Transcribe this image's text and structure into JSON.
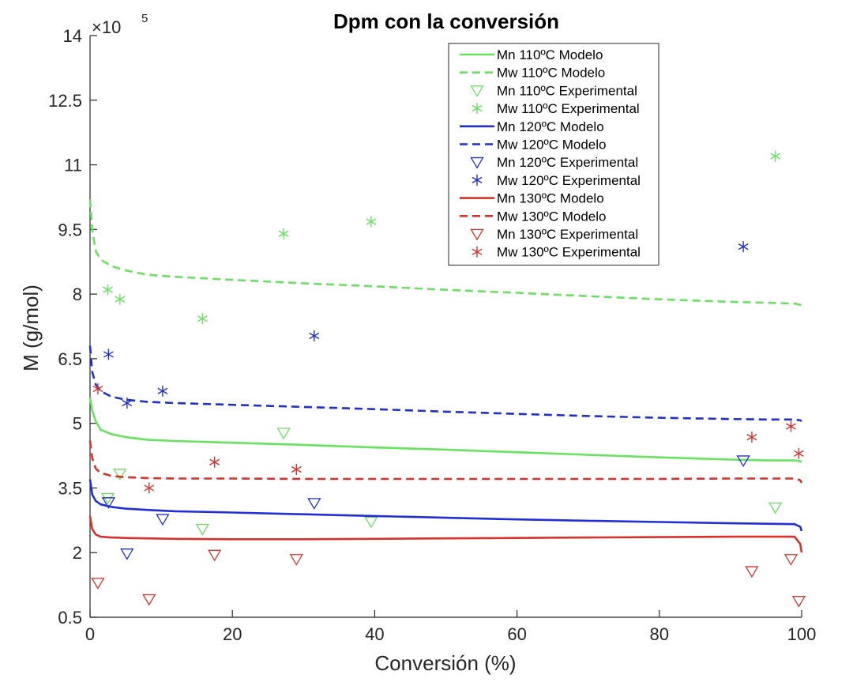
{
  "chart_data": {
    "type": "line",
    "title": "Dpm con la conversión",
    "xlabel": "Conversión (%)",
    "ylabel": "M (g/mol)",
    "y_multiplier": "×10",
    "y_exponent": "5",
    "xlim": [
      0,
      100
    ],
    "ylim": [
      0.5,
      14
    ],
    "x_ticks": [
      0,
      20,
      40,
      60,
      80,
      100
    ],
    "x_tick_labels": [
      "0",
      "20",
      "40",
      "60",
      "80",
      "100"
    ],
    "y_ticks": [
      0.5,
      2,
      3.5,
      5,
      6.5,
      8,
      9.5,
      11,
      12.5,
      14
    ],
    "y_tick_labels": [
      "0.5",
      "2",
      "3.5",
      "5",
      "6.5",
      "8",
      "9.5",
      "11",
      "12.5",
      "14"
    ],
    "grid": false,
    "legend_position": "top-right",
    "colors": {
      "green": "#66e35c",
      "blue": "#1f2fd6",
      "red": "#d8312a",
      "axis": "#262626"
    },
    "series": [
      {
        "name": "Mn 110ºC Modelo",
        "style": "solid",
        "color": "#66e35c",
        "x": [
          0,
          0.3,
          0.8,
          1.5,
          3,
          5,
          8,
          12,
          20,
          30,
          40,
          50,
          60,
          70,
          80,
          90,
          95,
          99,
          99.8,
          100
        ],
        "y": [
          5.6,
          5.3,
          5.05,
          4.85,
          4.75,
          4.68,
          4.62,
          4.59,
          4.55,
          4.5,
          4.44,
          4.39,
          4.33,
          4.27,
          4.21,
          4.16,
          4.14,
          4.14,
          4.12,
          4.1
        ]
      },
      {
        "name": "Mw 110ºC Modelo",
        "style": "dashed",
        "color": "#66e35c",
        "x": [
          0,
          0.3,
          0.8,
          1.5,
          3,
          5,
          8,
          12,
          20,
          30,
          40,
          50,
          60,
          70,
          80,
          90,
          95,
          99,
          99.8,
          100
        ],
        "y": [
          10.2,
          9.5,
          9.0,
          8.8,
          8.65,
          8.55,
          8.45,
          8.4,
          8.33,
          8.25,
          8.18,
          8.1,
          8.03,
          7.95,
          7.88,
          7.82,
          7.8,
          7.78,
          7.75,
          7.72
        ]
      },
      {
        "name": "Mn 110ºC Experimental",
        "style": "triangle",
        "color": "#66e35c",
        "x": [
          2.5,
          4.2,
          15.8,
          27.2,
          39.5,
          96.3
        ],
        "y": [
          3.27,
          3.83,
          2.55,
          4.78,
          2.72,
          3.05
        ]
      },
      {
        "name": "Mw 110ºC Experimental",
        "style": "asterisk",
        "color": "#66e35c",
        "x": [
          2.5,
          4.2,
          15.8,
          27.2,
          39.5,
          96.3
        ],
        "y": [
          8.1,
          7.88,
          7.43,
          9.4,
          9.68,
          11.2
        ]
      },
      {
        "name": "Mn 120ºC Modelo",
        "style": "solid",
        "color": "#1f2fd6",
        "x": [
          0,
          0.3,
          0.8,
          1.5,
          3,
          5,
          8,
          12,
          20,
          30,
          40,
          50,
          60,
          70,
          80,
          90,
          95,
          99,
          99.8,
          100
        ],
        "y": [
          3.7,
          3.35,
          3.2,
          3.12,
          3.06,
          3.02,
          2.99,
          2.96,
          2.93,
          2.89,
          2.85,
          2.81,
          2.77,
          2.74,
          2.71,
          2.68,
          2.67,
          2.66,
          2.6,
          2.5
        ]
      },
      {
        "name": "Mw 120ºC Modelo",
        "style": "dashed",
        "color": "#1f2fd6",
        "x": [
          0,
          0.3,
          0.8,
          1.5,
          3,
          5,
          8,
          12,
          20,
          30,
          40,
          50,
          60,
          70,
          80,
          90,
          95,
          99,
          99.8,
          100
        ],
        "y": [
          6.8,
          6.2,
          5.9,
          5.75,
          5.62,
          5.55,
          5.5,
          5.47,
          5.43,
          5.38,
          5.33,
          5.27,
          5.22,
          5.17,
          5.13,
          5.1,
          5.09,
          5.09,
          5.07,
          5.05
        ]
      },
      {
        "name": "Mn 120ºC Experimental",
        "style": "triangle",
        "color": "#1f2fd6",
        "x": [
          2.6,
          5.2,
          10.2,
          31.5,
          91.8
        ],
        "y": [
          3.17,
          1.98,
          2.78,
          3.15,
          4.14
        ]
      },
      {
        "name": "Mw 120ºC Experimental",
        "style": "asterisk",
        "color": "#1f2fd6",
        "x": [
          2.6,
          5.2,
          10.2,
          31.5,
          91.8
        ],
        "y": [
          6.6,
          5.47,
          5.75,
          7.03,
          9.1
        ]
      },
      {
        "name": "Mn 130ºC Modelo",
        "style": "solid",
        "color": "#d8312a",
        "x": [
          0,
          0.3,
          0.8,
          1.5,
          3,
          5,
          8,
          12,
          20,
          30,
          40,
          50,
          60,
          70,
          80,
          90,
          95,
          99,
          99.8,
          100
        ],
        "y": [
          2.85,
          2.55,
          2.42,
          2.37,
          2.35,
          2.34,
          2.33,
          2.32,
          2.31,
          2.31,
          2.32,
          2.33,
          2.34,
          2.35,
          2.36,
          2.37,
          2.37,
          2.37,
          2.2,
          2.0
        ]
      },
      {
        "name": "Mw 130ºC Modelo",
        "style": "dashed",
        "color": "#d8312a",
        "x": [
          0,
          0.3,
          0.8,
          1.5,
          3,
          5,
          8,
          12,
          20,
          30,
          40,
          50,
          60,
          70,
          80,
          90,
          95,
          99,
          99.8,
          100
        ],
        "y": [
          4.6,
          4.2,
          3.95,
          3.85,
          3.78,
          3.75,
          3.73,
          3.72,
          3.72,
          3.71,
          3.71,
          3.71,
          3.71,
          3.71,
          3.71,
          3.72,
          3.72,
          3.72,
          3.68,
          3.62
        ]
      },
      {
        "name": "Mn 130ºC Experimental",
        "style": "triangle",
        "color": "#d8312a",
        "x": [
          1.1,
          8.3,
          17.5,
          29.0,
          93.0,
          98.5,
          99.6
        ],
        "y": [
          1.3,
          0.92,
          1.95,
          1.85,
          1.57,
          1.85,
          0.88
        ]
      },
      {
        "name": "Mw 130ºC Experimental",
        "style": "asterisk",
        "color": "#d8312a",
        "x": [
          1.1,
          8.3,
          17.5,
          29.0,
          93.0,
          98.5,
          99.6
        ],
        "y": [
          5.8,
          3.5,
          4.1,
          3.93,
          4.68,
          4.93,
          4.3
        ]
      }
    ]
  }
}
